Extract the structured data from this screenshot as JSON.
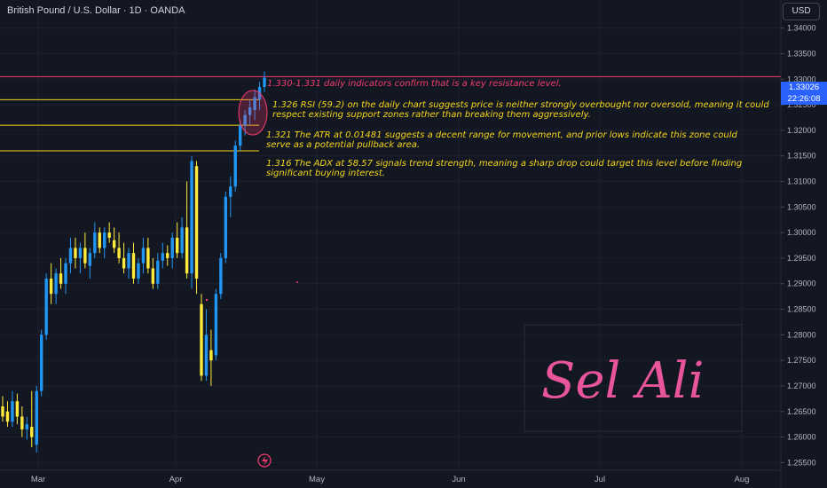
{
  "header": {
    "title": "British Pound / U.S. Dollar · 1D · OANDA",
    "currency": "USD"
  },
  "price_tag": {
    "price": "1.33026",
    "countdown": "22:26:08"
  },
  "watermark": "Sel Ali",
  "notes": [
    {
      "level": 1.3305,
      "color": "#f23d6d",
      "text": "1.330-1.331 daily indicators confirm that is a key resistance level."
    },
    {
      "level": 1.326,
      "color": "#f5d61a",
      "text": "1.326 RSI (59.2) on the daily chart suggests price is neither strongly overbought nor oversold, meaning it could respect existing support zones rather than breaking them aggressively."
    },
    {
      "level": 1.321,
      "color": "#f5d61a",
      "text": "1.321 The ATR at 0.01481 suggests a decent range for movement, and prior lows indicate this zone could serve as a potential pullback area."
    },
    {
      "level": 1.316,
      "color": "#f5d61a",
      "text": "1.316 The ADX at 58.57 signals trend strength, meaning a sharp drop could target this level before finding significant buying interest."
    }
  ],
  "chart_data": {
    "type": "candlestick",
    "symbol": "British Pound / U.S. Dollar",
    "interval": "1D",
    "ylim": [
      1.2535,
      1.3455
    ],
    "y_ticks": [
      "1.34000",
      "1.33500",
      "1.33000",
      "1.32500",
      "1.32000",
      "1.31500",
      "1.31000",
      "1.30500",
      "1.30000",
      "1.29500",
      "1.29000",
      "1.28500",
      "1.28000",
      "1.27500",
      "1.27000",
      "1.26500",
      "1.26000",
      "1.25500"
    ],
    "x_labels": [
      "Mar",
      "Apr",
      "May",
      "Jun",
      "Jul",
      "Aug"
    ],
    "horizontal_levels": [
      1.3305,
      1.326,
      1.321,
      1.316
    ],
    "candles": [
      {
        "o": 1.266,
        "h": 1.268,
        "l": 1.263,
        "c": 1.264
      },
      {
        "o": 1.265,
        "h": 1.267,
        "l": 1.262,
        "c": 1.263
      },
      {
        "o": 1.263,
        "h": 1.269,
        "l": 1.262,
        "c": 1.267
      },
      {
        "o": 1.267,
        "h": 1.2685,
        "l": 1.2625,
        "c": 1.264
      },
      {
        "o": 1.264,
        "h": 1.266,
        "l": 1.26,
        "c": 1.2615
      },
      {
        "o": 1.2615,
        "h": 1.264,
        "l": 1.2595,
        "c": 1.2625
      },
      {
        "o": 1.262,
        "h": 1.269,
        "l": 1.258,
        "c": 1.26
      },
      {
        "o": 1.2585,
        "h": 1.27,
        "l": 1.257,
        "c": 1.269
      },
      {
        "o": 1.269,
        "h": 1.281,
        "l": 1.268,
        "c": 1.28
      },
      {
        "o": 1.28,
        "h": 1.292,
        "l": 1.279,
        "c": 1.291
      },
      {
        "o": 1.291,
        "h": 1.294,
        "l": 1.286,
        "c": 1.288
      },
      {
        "o": 1.288,
        "h": 1.293,
        "l": 1.286,
        "c": 1.292
      },
      {
        "o": 1.292,
        "h": 1.295,
        "l": 1.289,
        "c": 1.29
      },
      {
        "o": 1.29,
        "h": 1.295,
        "l": 1.288,
        "c": 1.294
      },
      {
        "o": 1.294,
        "h": 1.299,
        "l": 1.292,
        "c": 1.297
      },
      {
        "o": 1.297,
        "h": 1.299,
        "l": 1.293,
        "c": 1.295
      },
      {
        "o": 1.295,
        "h": 1.298,
        "l": 1.292,
        "c": 1.297
      },
      {
        "o": 1.297,
        "h": 1.3,
        "l": 1.293,
        "c": 1.294
      },
      {
        "o": 1.2935,
        "h": 1.297,
        "l": 1.291,
        "c": 1.296
      },
      {
        "o": 1.296,
        "h": 1.302,
        "l": 1.295,
        "c": 1.3
      },
      {
        "o": 1.3,
        "h": 1.301,
        "l": 1.296,
        "c": 1.297
      },
      {
        "o": 1.297,
        "h": 1.301,
        "l": 1.295,
        "c": 1.3
      },
      {
        "o": 1.3,
        "h": 1.302,
        "l": 1.298,
        "c": 1.299
      },
      {
        "o": 1.2985,
        "h": 1.301,
        "l": 1.296,
        "c": 1.297
      },
      {
        "o": 1.297,
        "h": 1.3,
        "l": 1.294,
        "c": 1.295
      },
      {
        "o": 1.295,
        "h": 1.298,
        "l": 1.292,
        "c": 1.293
      },
      {
        "o": 1.293,
        "h": 1.297,
        "l": 1.291,
        "c": 1.296
      },
      {
        "o": 1.296,
        "h": 1.298,
        "l": 1.29,
        "c": 1.291
      },
      {
        "o": 1.291,
        "h": 1.295,
        "l": 1.29,
        "c": 1.294
      },
      {
        "o": 1.294,
        "h": 1.299,
        "l": 1.292,
        "c": 1.297
      },
      {
        "o": 1.297,
        "h": 1.299,
        "l": 1.292,
        "c": 1.293
      },
      {
        "o": 1.293,
        "h": 1.295,
        "l": 1.289,
        "c": 1.29
      },
      {
        "o": 1.29,
        "h": 1.296,
        "l": 1.289,
        "c": 1.2945
      },
      {
        "o": 1.2945,
        "h": 1.298,
        "l": 1.293,
        "c": 1.296
      },
      {
        "o": 1.296,
        "h": 1.2975,
        "l": 1.2935,
        "c": 1.295
      },
      {
        "o": 1.295,
        "h": 1.3,
        "l": 1.293,
        "c": 1.299
      },
      {
        "o": 1.299,
        "h": 1.302,
        "l": 1.295,
        "c": 1.296
      },
      {
        "o": 1.296,
        "h": 1.303,
        "l": 1.295,
        "c": 1.301
      },
      {
        "o": 1.301,
        "h": 1.31,
        "l": 1.291,
        "c": 1.292
      },
      {
        "o": 1.292,
        "h": 1.315,
        "l": 1.289,
        "c": 1.314
      },
      {
        "o": 1.313,
        "h": 1.314,
        "l": 1.288,
        "c": 1.291
      },
      {
        "o": 1.286,
        "h": 1.288,
        "l": 1.271,
        "c": 1.272
      },
      {
        "o": 1.272,
        "h": 1.285,
        "l": 1.271,
        "c": 1.28
      },
      {
        "o": 1.277,
        "h": 1.281,
        "l": 1.27,
        "c": 1.275
      },
      {
        "o": 1.276,
        "h": 1.289,
        "l": 1.275,
        "c": 1.288
      },
      {
        "o": 1.288,
        "h": 1.296,
        "l": 1.287,
        "c": 1.295
      },
      {
        "o": 1.295,
        "h": 1.308,
        "l": 1.294,
        "c": 1.307
      },
      {
        "o": 1.307,
        "h": 1.311,
        "l": 1.303,
        "c": 1.309
      },
      {
        "o": 1.309,
        "h": 1.318,
        "l": 1.308,
        "c": 1.317
      },
      {
        "o": 1.317,
        "h": 1.322,
        "l": 1.316,
        "c": 1.321
      },
      {
        "o": 1.321,
        "h": 1.324,
        "l": 1.319,
        "c": 1.323
      },
      {
        "o": 1.323,
        "h": 1.326,
        "l": 1.321,
        "c": 1.3245
      },
      {
        "o": 1.324,
        "h": 1.328,
        "l": 1.322,
        "c": 1.3265
      },
      {
        "o": 1.326,
        "h": 1.3295,
        "l": 1.324,
        "c": 1.3285
      },
      {
        "o": 1.3285,
        "h": 1.3315,
        "l": 1.3275,
        "c": 1.3303
      }
    ]
  }
}
